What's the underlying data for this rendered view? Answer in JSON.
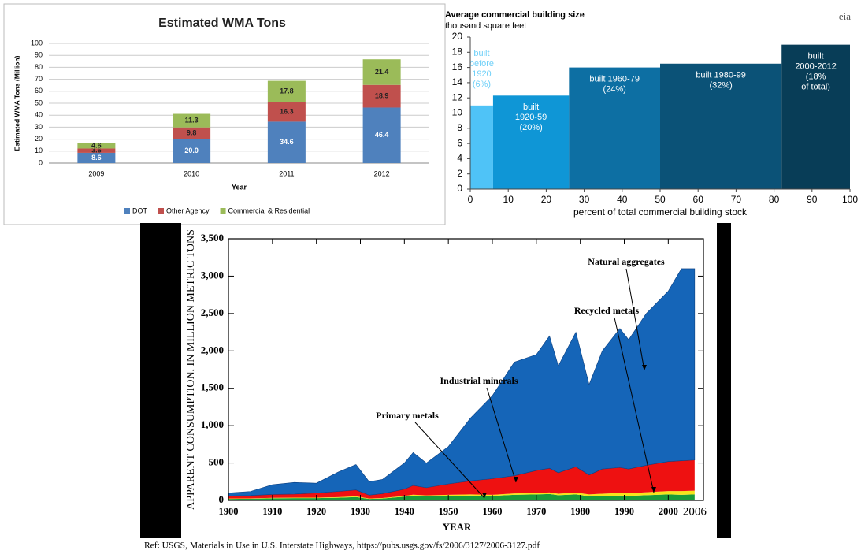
{
  "chart_data": [
    {
      "type": "bar",
      "stacked": true,
      "title": "Estimated WMA Tons",
      "x_label": "Year",
      "y_label": "Estimated WMA Tons (Million)",
      "categories": [
        "2009",
        "2010",
        "2011",
        "2012"
      ],
      "series": [
        {
          "name": "DOT",
          "color": "#4f81bd",
          "values": [
            8.6,
            20,
            34.6,
            46.4
          ],
          "value_labels": [
            "8.6",
            "20.0",
            "34.6",
            "46.4"
          ]
        },
        {
          "name": "Other Agency",
          "color": "#c0504d",
          "values": [
            3.6,
            9.8,
            16.3,
            18.9
          ],
          "value_labels": [
            "3.6",
            "9.8",
            "16.3",
            "18.9"
          ]
        },
        {
          "name": "Commercial & Residential",
          "color": "#9bbb59",
          "values": [
            4.6,
            11.3,
            17.8,
            21.4
          ],
          "value_labels": [
            "4.6",
            "11.3",
            "17.8",
            "21.4"
          ]
        }
      ],
      "ylim": [
        0,
        100
      ],
      "yticks": [
        0,
        10,
        20,
        30,
        40,
        50,
        60,
        70,
        80,
        90,
        100
      ],
      "grid": true,
      "legend": "bottom"
    },
    {
      "type": "variwidth",
      "title": "Average commercial building size",
      "subtitle": "thousand square feet",
      "logo": "eia",
      "x_label": "percent of total commercial building stock",
      "bins": [
        0,
        6,
        26,
        50,
        82,
        100
      ],
      "values": [
        11,
        12.3,
        16,
        16.5,
        19
      ],
      "colors": [
        "#4fc3f7",
        "#0f96d6",
        "#0d6fa3",
        "#0b5277",
        "#083d57"
      ],
      "labels": [
        [
          "built",
          "before",
          "1920",
          "(6%)"
        ],
        [
          "built",
          "1920-59",
          "(20%)"
        ],
        [
          "built 1960-79",
          "(24%)"
        ],
        [
          "built 1980-99",
          "(32%)"
        ],
        [
          "built",
          "2000-2012",
          "(18%",
          "of total)"
        ]
      ],
      "xlim": [
        0,
        100
      ],
      "xticks": [
        0,
        10,
        20,
        30,
        40,
        50,
        60,
        70,
        80,
        90,
        100
      ],
      "ylim": [
        0,
        20
      ],
      "yticks": [
        0,
        2,
        4,
        6,
        8,
        10,
        12,
        14,
        16,
        18,
        20
      ]
    },
    {
      "type": "stacked_area",
      "x_label": "YEAR",
      "y_label": "APPARENT CONSUMPTION, IN MILLION METRIC TONS",
      "note": "Ref: USGS, Materials in Use in U.S. Interstate Highways, https://pubs.usgs.gov/fs/2006/3127/2006-3127.pdf",
      "x": [
        1900,
        1905,
        1910,
        1915,
        1920,
        1925,
        1929,
        1932,
        1935,
        1940,
        1942,
        1945,
        1950,
        1955,
        1960,
        1965,
        1970,
        1973,
        1975,
        1979,
        1982,
        1985,
        1989,
        1991,
        1995,
        2000,
        2003,
        2006
      ],
      "series": [
        {
          "name": "Primary metals",
          "color": "#1a9b3a",
          "values": [
            20,
            22,
            28,
            30,
            30,
            35,
            45,
            20,
            25,
            50,
            65,
            55,
            60,
            65,
            60,
            75,
            80,
            85,
            70,
            80,
            55,
            60,
            65,
            60,
            70,
            80,
            75,
            80
          ]
        },
        {
          "name": "Recycled metals",
          "color": "#f5e51b",
          "values": [
            5,
            5,
            6,
            7,
            7,
            8,
            10,
            5,
            6,
            10,
            12,
            12,
            15,
            15,
            15,
            18,
            20,
            22,
            20,
            25,
            25,
            30,
            35,
            35,
            40,
            45,
            50,
            50
          ]
        },
        {
          "name": "Industrial minerals",
          "color": "#ee1111",
          "values": [
            35,
            38,
            46,
            48,
            63,
            77,
            85,
            45,
            59,
            90,
            123,
            103,
            145,
            180,
            215,
            237,
            300,
            323,
            280,
            345,
            260,
            330,
            340,
            325,
            360,
            395,
            405,
            410
          ]
        },
        {
          "name": "Natural aggregates",
          "color": "#1565b8",
          "values": [
            40,
            55,
            130,
            155,
            130,
            260,
            340,
            180,
            190,
            350,
            440,
            330,
            500,
            840,
            1110,
            1520,
            1550,
            1770,
            1430,
            1800,
            1210,
            1580,
            1860,
            1730,
            2030,
            2280,
            2570,
            2560
          ]
        }
      ],
      "xlim": [
        1900,
        2008
      ],
      "xticks": [
        1900,
        1910,
        1920,
        1930,
        1940,
        1950,
        1960,
        1970,
        1980,
        1990,
        2000,
        2006
      ],
      "ylim": [
        0,
        3500
      ],
      "yticks": [
        0,
        500,
        {
          "value": 1000,
          "label": "1,000"
        },
        {
          "value": 1500,
          "label": "1,500"
        },
        {
          "value": 2000,
          "label": "2,000"
        },
        {
          "value": 2500,
          "label": "2,500"
        },
        {
          "value": 3000,
          "label": "3,000"
        },
        {
          "value": 3500,
          "label": "3,500"
        }
      ]
    }
  ]
}
